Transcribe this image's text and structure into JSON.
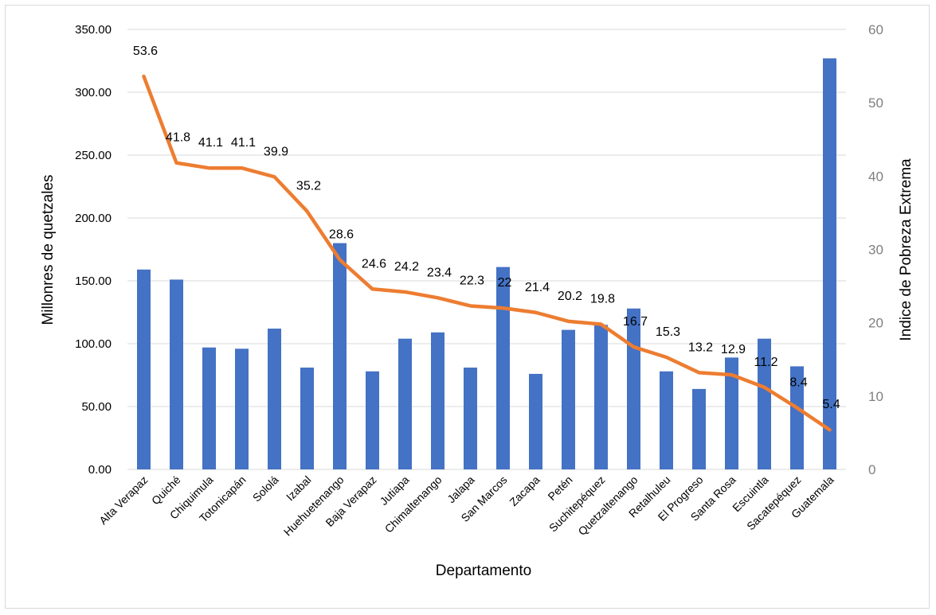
{
  "chart_data": {
    "type": "bar+line",
    "title": "",
    "xlabel": "Departamento",
    "ylabel_left": "Millonres de quetzales",
    "ylabel_right": "Indice de Pobreza Extrema",
    "ylim_left": [
      0,
      350
    ],
    "ylim_right": [
      0,
      60
    ],
    "left_ticks": [
      "0.00",
      "50.00",
      "100.00",
      "150.00",
      "200.00",
      "250.00",
      "300.00",
      "350.00"
    ],
    "right_ticks": [
      "0",
      "10",
      "20",
      "30",
      "40",
      "50",
      "60"
    ],
    "grid": true,
    "legend": "none",
    "categories": [
      "Alta Verapaz",
      "Quiché",
      "Chiquimula",
      "Totonicapán",
      "Sololá",
      "Izabal",
      "Huehuetenango",
      "Baja Verapaz",
      "Jutiapa",
      "Chimaltenango",
      "Jalapa",
      "San Marcos",
      "Zacapa",
      "Petén",
      "Suchitepéquez",
      "Quetzaltenango",
      "Retalhuleu",
      "El Progreso",
      "Santa Rosa",
      "Escuintla",
      "Sacatepéquez",
      "Guatemala"
    ],
    "series": [
      {
        "type": "bar",
        "axis": "left",
        "color": "#4472c4",
        "values": [
          159,
          151,
          97,
          96,
          112,
          81,
          180,
          78,
          104,
          109,
          81,
          161,
          76,
          111,
          115,
          128,
          78,
          64,
          89,
          104,
          82,
          327
        ]
      },
      {
        "type": "line",
        "axis": "right",
        "color": "#ed7d31",
        "values": [
          53.6,
          41.8,
          41.1,
          41.1,
          39.9,
          35.2,
          28.6,
          24.6,
          24.2,
          23.4,
          22.3,
          22,
          21.4,
          20.2,
          19.8,
          16.7,
          15.3,
          13.2,
          12.9,
          11.2,
          8.4,
          5.4
        ],
        "labels": [
          "53.6",
          "41.8",
          "41.1",
          "41.1",
          "39.9",
          "35.2",
          "28.6",
          "24.6",
          "24.2",
          "23.4",
          "22.3",
          "22",
          "21.4",
          "20.2",
          "19.8",
          "16.7",
          "15.3",
          "13.2",
          "12.9",
          "11.2",
          "8.4",
          "5.4"
        ]
      }
    ]
  }
}
